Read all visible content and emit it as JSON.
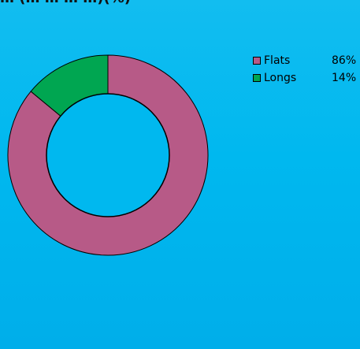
{
  "chart_data": {
    "type": "pie",
    "title": "… (… … … …)(%)",
    "categories": [
      "Flats",
      "Longs"
    ],
    "values": [
      86,
      14
    ],
    "value_labels": [
      "86%",
      "14%"
    ],
    "colors": {
      "Flats": "#b75a87",
      "Longs": "#00a651"
    },
    "legend": "top-right",
    "donut": true
  }
}
